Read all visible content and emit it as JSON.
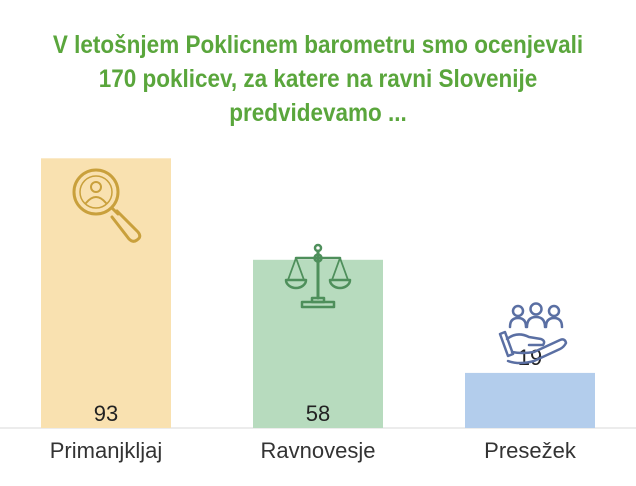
{
  "chart_data": {
    "type": "bar",
    "title": "V letošnjem Poklicnem barometru smo ocenjevali 170 poklicev, za katere na ravni Slovenije predvidevamo ...",
    "categories": [
      "Primanjkljaj",
      "Ravnovesje",
      "Presežek"
    ],
    "values": [
      93,
      58,
      19
    ],
    "colors": [
      "#f9e1b0",
      "#b7dbbe",
      "#b3cdec"
    ],
    "icons": [
      "search-person-icon",
      "balance-scale-icon",
      "hand-people-icon"
    ],
    "icon_colors": [
      "#c9a03c",
      "#4e8f5b",
      "#5a6fa3"
    ],
    "value_label_position": [
      "inside",
      "inside",
      "outside"
    ],
    "ylim": [
      0,
      100
    ],
    "grid": false,
    "xlabel": "",
    "ylabel": ""
  }
}
